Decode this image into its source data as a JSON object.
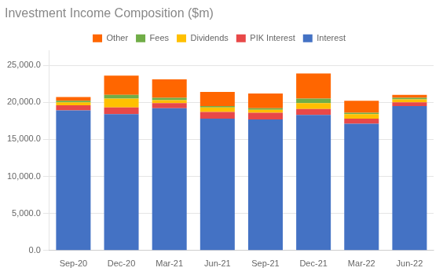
{
  "chart_data": {
    "type": "bar",
    "title": "Investment Income Composition ($m)",
    "categories": [
      "Sep-20",
      "Dec-20",
      "Mar-21",
      "Jun-21",
      "Sep-21",
      "Dec-21",
      "Mar-22",
      "Jun-22"
    ],
    "series": [
      {
        "name": "Interest",
        "color": "#4472C4",
        "values": [
          18900,
          18400,
          19200,
          17800,
          17700,
          18300,
          17100,
          19500
        ]
      },
      {
        "name": "PIK Interest",
        "color": "#E84848",
        "values": [
          700,
          900,
          700,
          900,
          900,
          800,
          700,
          500
        ]
      },
      {
        "name": "Dividends",
        "color": "#FFC000",
        "values": [
          400,
          1200,
          400,
          600,
          400,
          800,
          600,
          400
        ]
      },
      {
        "name": "Fees",
        "color": "#70AD47",
        "values": [
          200,
          500,
          300,
          200,
          200,
          600,
          200,
          200
        ]
      },
      {
        "name": "Other",
        "color": "#FF6600",
        "values": [
          500,
          2600,
          2500,
          1900,
          2000,
          3400,
          1600,
          400
        ]
      }
    ],
    "stacked": true,
    "ylim": [
      0,
      27000
    ],
    "yticks": [
      {
        "value": 0,
        "label": "0.0"
      },
      {
        "value": 5000,
        "label": "5,000.0"
      },
      {
        "value": 10000,
        "label": "10,000.0"
      },
      {
        "value": 15000,
        "label": "15,000.0"
      },
      {
        "value": 20000,
        "label": "20,000.0"
      },
      {
        "value": 25000,
        "label": "25,000.0"
      }
    ],
    "grid": true,
    "legend": "top"
  }
}
